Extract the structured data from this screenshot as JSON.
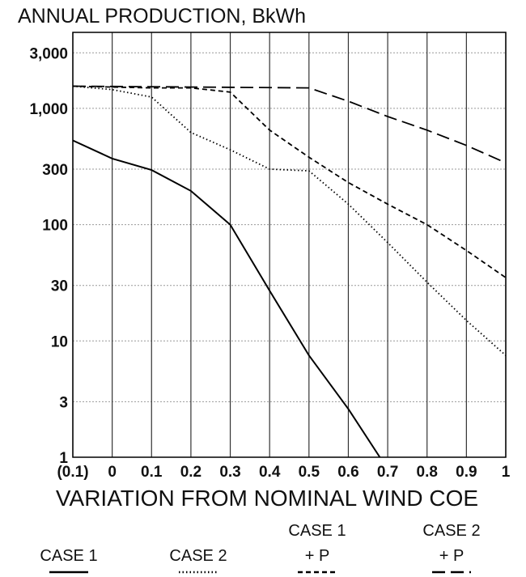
{
  "chart_data": {
    "type": "line",
    "title": "ANNUAL PRODUCTION, BkWh",
    "x_label": "VARIATION FROM NOMINAL WIND COE",
    "xlim": [
      -0.1,
      1
    ],
    "xticks": [
      {
        "value": -0.1,
        "label": "(0.1)"
      },
      0,
      0.1,
      0.2,
      0.3,
      0.4,
      0.5,
      0.6,
      0.7,
      0.8,
      0.9,
      1
    ],
    "ylim": [
      1,
      4500
    ],
    "log_y": true,
    "yticks": [
      1,
      3,
      10,
      30,
      100,
      300,
      {
        "value": 1000,
        "label": "1,000"
      },
      {
        "value": 3000,
        "label": "3,000"
      }
    ],
    "grid": true,
    "series": [
      {
        "name": "CASE 1",
        "color": "#000000",
        "dash": "solid",
        "x": [
          -0.1,
          0,
          0.1,
          0.2,
          0.3,
          0.4,
          0.5,
          0.6,
          0.68
        ],
        "values": [
          530,
          370,
          295,
          195,
          100,
          27,
          7.5,
          2.6,
          1
        ]
      },
      {
        "name": "CASE 2",
        "color": "#000000",
        "dash": "dotted",
        "x": [
          -0.1,
          0,
          0.1,
          0.2,
          0.3,
          0.4,
          0.5,
          0.6,
          0.7,
          0.8,
          0.9,
          1
        ],
        "values": [
          1550,
          1450,
          1250,
          620,
          440,
          300,
          290,
          150,
          70,
          32,
          15,
          7.5
        ]
      },
      {
        "name": "CASE 1\n+ P",
        "color": "#000000",
        "dash": "short-dash",
        "x": [
          -0.1,
          0.1,
          0.2,
          0.3,
          0.4,
          0.5,
          0.6,
          0.7,
          0.8,
          0.9,
          1
        ],
        "values": [
          1550,
          1500,
          1500,
          1380,
          650,
          380,
          230,
          150,
          100,
          60,
          35
        ]
      },
      {
        "name": "CASE 2\n+ P",
        "color": "#000000",
        "dash": "long-dash",
        "x": [
          -0.1,
          0.5,
          0.6,
          0.7,
          0.8,
          0.9,
          1
        ],
        "values": [
          1550,
          1500,
          1150,
          850,
          650,
          480,
          340
        ]
      }
    ]
  }
}
